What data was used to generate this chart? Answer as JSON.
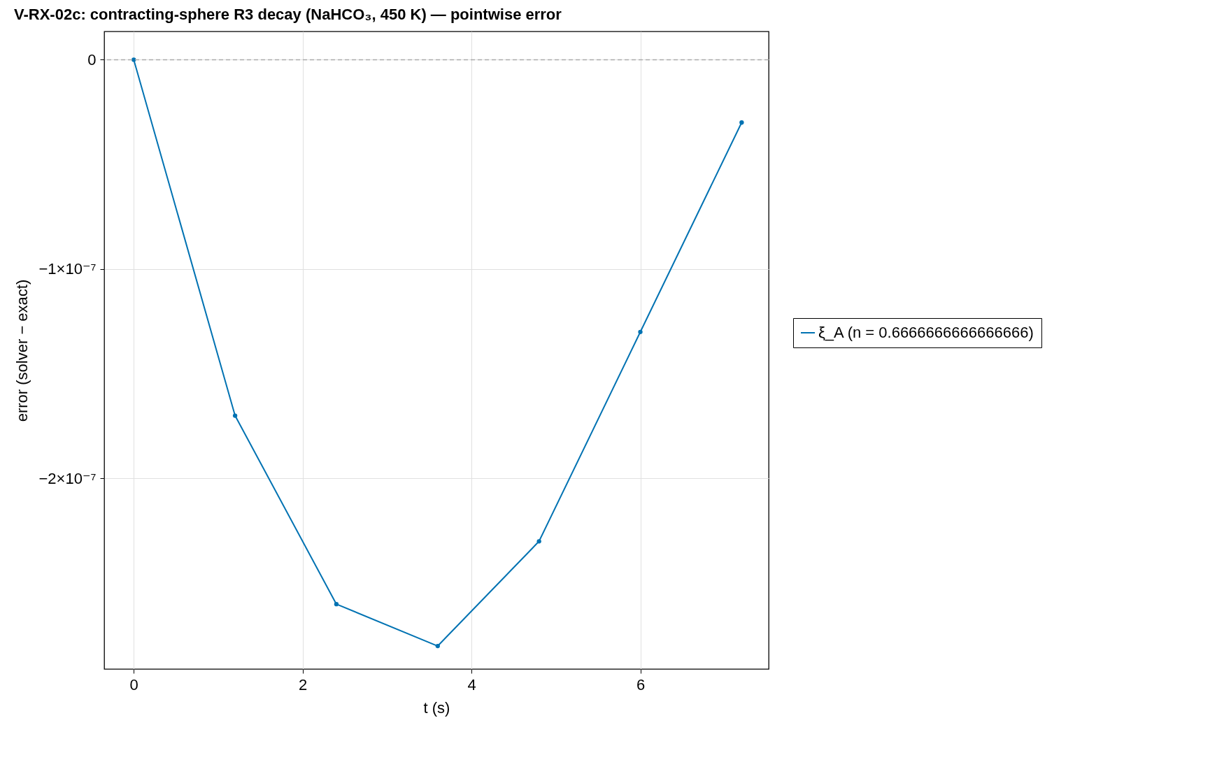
{
  "chart_data": {
    "type": "line",
    "title": "V-RX-02c: contracting-sphere R3 decay (NaHCO₃, 450 K) — pointwise error",
    "xlabel": "t (s)",
    "ylabel": "error (solver − exact)",
    "x": [
      0,
      1.2,
      2.4,
      3.6,
      4.8,
      6.0,
      7.2
    ],
    "series": [
      {
        "name": "ξ_A (n = 0.6666666666666666)",
        "color": "#0072b2",
        "values": [
          0,
          -1.7e-07,
          -2.6e-07,
          -2.8e-07,
          -2.3e-07,
          -1.3e-07,
          -3e-08
        ]
      }
    ],
    "xlim": [
      -0.35,
      7.52
    ],
    "xticks": [
      0,
      2,
      4,
      6
    ],
    "ylim": [
      -2.91e-07,
      1.35e-08
    ],
    "yticks": [
      0,
      {
        "value": -1e-07,
        "label": "−1×10⁻⁷"
      },
      {
        "value": -2e-07,
        "label": "−2×10⁻⁷"
      }
    ],
    "grid": true,
    "legend": "right",
    "marker": "circle",
    "line_style": "solid",
    "ref_lines": [
      {
        "axis": "y",
        "value": 0,
        "color": "#aaaaaa",
        "line_style": "dashed"
      }
    ]
  }
}
